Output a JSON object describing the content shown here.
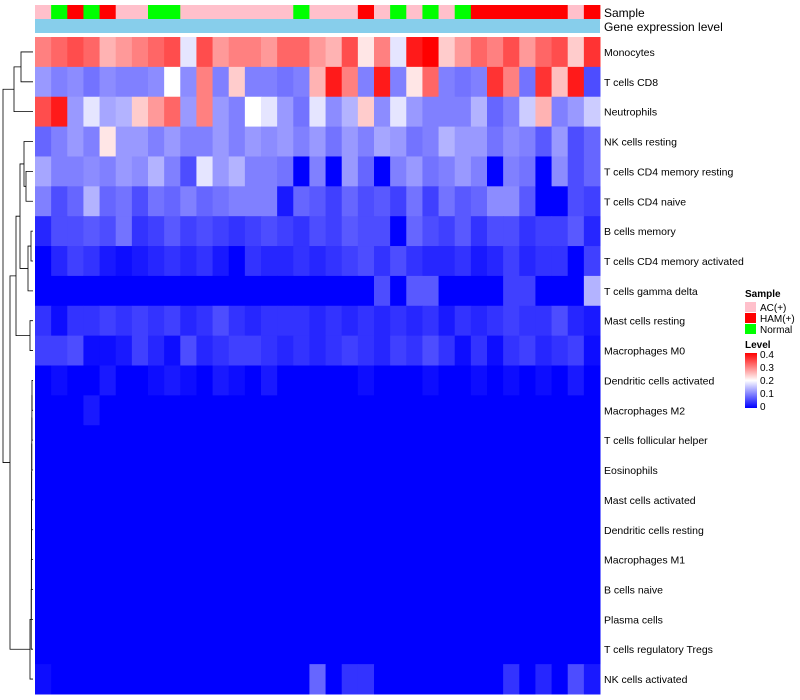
{
  "chart_data": {
    "type": "heatmap",
    "title": "",
    "annotation_labels": {
      "sample": "Sample",
      "expression": "Gene expression level"
    },
    "rows": [
      "Monocytes",
      "T cells CD8",
      "Neutrophils",
      "NK cells resting",
      "T cells CD4 memory resting",
      "T cells CD4 naive",
      "B cells memory",
      "T cells CD4 memory activated",
      "T cells gamma delta",
      "Mast cells resting",
      "Macrophages M0",
      "Dendritic cells activated",
      "Macrophages M2",
      "T cells follicular helper",
      "Eosinophils",
      "Mast cells activated",
      "Dendritic cells resting",
      "Macrophages M1",
      "B cells naive",
      "Plasma cells",
      "T cells regulatory  Tregs",
      "NK cells activated"
    ],
    "sample_groups": [
      "AC(+)",
      "Normal",
      "HAM(+)",
      "Normal",
      "HAM(+)",
      "AC(+)",
      "AC(+)",
      "Normal",
      "Normal",
      "AC(+)",
      "AC(+)",
      "AC(+)",
      "AC(+)",
      "AC(+)",
      "AC(+)",
      "AC(+)",
      "Normal",
      "AC(+)",
      "AC(+)",
      "AC(+)",
      "HAM(+)",
      "AC(+)",
      "Normal",
      "AC(+)",
      "Normal",
      "AC(+)",
      "Normal",
      "HAM(+)",
      "HAM(+)",
      "HAM(+)",
      "HAM(+)",
      "HAM(+)",
      "HAM(+)",
      "AC(+)",
      "HAM(+)"
    ],
    "values": [
      [
        0.3,
        0.32,
        0.34,
        0.32,
        0.26,
        0.28,
        0.3,
        0.32,
        0.34,
        0.18,
        0.34,
        0.28,
        0.3,
        0.3,
        0.28,
        0.32,
        0.32,
        0.28,
        0.26,
        0.34,
        0.22,
        0.3,
        0.18,
        0.38,
        0.4,
        0.24,
        0.28,
        0.32,
        0.3,
        0.34,
        0.28,
        0.32,
        0.34,
        0.24,
        0.36
      ],
      [
        0.12,
        0.1,
        0.11,
        0.09,
        0.11,
        0.1,
        0.1,
        0.11,
        0.2,
        0.11,
        0.3,
        0.1,
        0.24,
        0.1,
        0.1,
        0.09,
        0.1,
        0.26,
        0.38,
        0.3,
        0.1,
        0.38,
        0.1,
        0.22,
        0.32,
        0.1,
        0.09,
        0.1,
        0.36,
        0.3,
        0.09,
        0.36,
        0.25,
        0.38,
        0.06
      ],
      [
        0.34,
        0.38,
        0.12,
        0.18,
        0.13,
        0.14,
        0.24,
        0.28,
        0.32,
        0.12,
        0.3,
        0.12,
        0.1,
        0.2,
        0.18,
        0.12,
        0.09,
        0.18,
        0.11,
        0.14,
        0.24,
        0.11,
        0.18,
        0.12,
        0.1,
        0.1,
        0.1,
        0.14,
        0.08,
        0.1,
        0.16,
        0.26,
        0.1,
        0.12,
        0.16
      ],
      [
        0.08,
        0.1,
        0.12,
        0.1,
        0.22,
        0.12,
        0.12,
        0.1,
        0.12,
        0.1,
        0.1,
        0.12,
        0.1,
        0.12,
        0.11,
        0.12,
        0.1,
        0.12,
        0.09,
        0.12,
        0.1,
        0.13,
        0.12,
        0.09,
        0.1,
        0.14,
        0.12,
        0.12,
        0.09,
        0.11,
        0.1,
        0.07,
        0.12,
        0.06,
        0.08
      ],
      [
        0.13,
        0.1,
        0.1,
        0.11,
        0.1,
        0.12,
        0.11,
        0.14,
        0.1,
        0.06,
        0.18,
        0.12,
        0.14,
        0.1,
        0.1,
        0.09,
        0.0,
        0.1,
        0.0,
        0.12,
        0.08,
        0.0,
        0.1,
        0.12,
        0.09,
        0.1,
        0.12,
        0.1,
        0.0,
        0.1,
        0.09,
        0.0,
        0.11,
        0.06,
        0.08
      ],
      [
        0.1,
        0.06,
        0.08,
        0.14,
        0.08,
        0.09,
        0.06,
        0.09,
        0.08,
        0.1,
        0.08,
        0.09,
        0.1,
        0.1,
        0.1,
        0.02,
        0.08,
        0.07,
        0.05,
        0.08,
        0.06,
        0.07,
        0.05,
        0.09,
        0.05,
        0.09,
        0.07,
        0.08,
        0.11,
        0.11,
        0.07,
        0.0,
        0.0,
        0.06,
        0.05
      ],
      [
        0.03,
        0.06,
        0.06,
        0.07,
        0.06,
        0.09,
        0.04,
        0.05,
        0.07,
        0.05,
        0.06,
        0.05,
        0.04,
        0.05,
        0.06,
        0.05,
        0.04,
        0.06,
        0.05,
        0.07,
        0.06,
        0.06,
        0.0,
        0.08,
        0.06,
        0.05,
        0.07,
        0.04,
        0.06,
        0.06,
        0.04,
        0.05,
        0.05,
        0.07,
        0.03
      ],
      [
        0.0,
        0.03,
        0.05,
        0.04,
        0.02,
        0.01,
        0.02,
        0.03,
        0.04,
        0.03,
        0.04,
        0.02,
        0.0,
        0.04,
        0.03,
        0.03,
        0.04,
        0.03,
        0.04,
        0.05,
        0.06,
        0.04,
        0.06,
        0.04,
        0.03,
        0.03,
        0.04,
        0.02,
        0.03,
        0.05,
        0.03,
        0.04,
        0.04,
        0.0,
        0.05
      ],
      [
        0.0,
        0.0,
        0.0,
        0.0,
        0.0,
        0.0,
        0.0,
        0.0,
        0.0,
        0.0,
        0.0,
        0.0,
        0.0,
        0.0,
        0.0,
        0.0,
        0.0,
        0.0,
        0.0,
        0.0,
        0.0,
        0.06,
        0.0,
        0.07,
        0.07,
        0.0,
        0.0,
        0.0,
        0.0,
        0.05,
        0.05,
        0.0,
        0.0,
        0.0,
        0.14
      ],
      [
        0.04,
        0.01,
        0.04,
        0.04,
        0.05,
        0.04,
        0.05,
        0.04,
        0.05,
        0.03,
        0.04,
        0.06,
        0.04,
        0.03,
        0.04,
        0.04,
        0.04,
        0.03,
        0.04,
        0.03,
        0.04,
        0.03,
        0.04,
        0.03,
        0.04,
        0.02,
        0.04,
        0.03,
        0.04,
        0.05,
        0.04,
        0.04,
        0.06,
        0.03,
        0.02
      ],
      [
        0.05,
        0.05,
        0.06,
        0.01,
        0.01,
        0.02,
        0.05,
        0.03,
        0.01,
        0.06,
        0.03,
        0.04,
        0.05,
        0.05,
        0.04,
        0.03,
        0.04,
        0.03,
        0.04,
        0.05,
        0.04,
        0.03,
        0.05,
        0.04,
        0.06,
        0.04,
        0.01,
        0.04,
        0.01,
        0.04,
        0.05,
        0.03,
        0.04,
        0.05,
        0.01
      ],
      [
        0.0,
        0.01,
        0.0,
        0.0,
        0.02,
        0.0,
        0.0,
        0.01,
        0.02,
        0.01,
        0.0,
        0.02,
        0.01,
        0.0,
        0.02,
        0.0,
        0.0,
        0.0,
        0.0,
        0.0,
        0.01,
        0.0,
        0.0,
        0.0,
        0.01,
        0.0,
        0.0,
        0.01,
        0.0,
        0.01,
        0.0,
        0.01,
        0.0,
        0.02,
        0.0
      ],
      [
        0.0,
        0.0,
        0.0,
        0.02,
        0.0,
        0.0,
        0.0,
        0.0,
        0.0,
        0.0,
        0.0,
        0.0,
        0.0,
        0.0,
        0.0,
        0.0,
        0.0,
        0.0,
        0.0,
        0.0,
        0.0,
        0.0,
        0.0,
        0.0,
        0.0,
        0.0,
        0.0,
        0.0,
        0.0,
        0.0,
        0.0,
        0.0,
        0.0,
        0.0,
        0.0
      ],
      [
        0.0,
        0.0,
        0.0,
        0.0,
        0.0,
        0.0,
        0.0,
        0.0,
        0.0,
        0.0,
        0.0,
        0.0,
        0.0,
        0.0,
        0.0,
        0.0,
        0.0,
        0.0,
        0.0,
        0.0,
        0.0,
        0.0,
        0.0,
        0.0,
        0.0,
        0.0,
        0.0,
        0.0,
        0.0,
        0.0,
        0.0,
        0.0,
        0.0,
        0.0,
        0.0
      ],
      [
        0.0,
        0.0,
        0.0,
        0.0,
        0.0,
        0.0,
        0.0,
        0.0,
        0.0,
        0.0,
        0.0,
        0.0,
        0.0,
        0.0,
        0.0,
        0.0,
        0.0,
        0.0,
        0.0,
        0.0,
        0.0,
        0.0,
        0.0,
        0.0,
        0.0,
        0.0,
        0.0,
        0.0,
        0.0,
        0.0,
        0.0,
        0.0,
        0.0,
        0.0,
        0.0
      ],
      [
        0.0,
        0.0,
        0.0,
        0.0,
        0.0,
        0.0,
        0.0,
        0.0,
        0.0,
        0.0,
        0.0,
        0.0,
        0.0,
        0.0,
        0.0,
        0.0,
        0.0,
        0.0,
        0.0,
        0.0,
        0.0,
        0.0,
        0.0,
        0.0,
        0.0,
        0.0,
        0.0,
        0.0,
        0.0,
        0.0,
        0.0,
        0.0,
        0.0,
        0.0,
        0.0
      ],
      [
        0.0,
        0.0,
        0.0,
        0.0,
        0.0,
        0.0,
        0.0,
        0.0,
        0.0,
        0.0,
        0.0,
        0.0,
        0.0,
        0.0,
        0.0,
        0.0,
        0.0,
        0.0,
        0.0,
        0.0,
        0.0,
        0.0,
        0.0,
        0.0,
        0.0,
        0.0,
        0.0,
        0.0,
        0.0,
        0.0,
        0.0,
        0.0,
        0.0,
        0.0,
        0.0
      ],
      [
        0.0,
        0.0,
        0.0,
        0.0,
        0.0,
        0.0,
        0.0,
        0.0,
        0.0,
        0.0,
        0.0,
        0.0,
        0.0,
        0.0,
        0.0,
        0.0,
        0.0,
        0.0,
        0.0,
        0.0,
        0.0,
        0.0,
        0.0,
        0.0,
        0.0,
        0.0,
        0.0,
        0.0,
        0.0,
        0.0,
        0.0,
        0.0,
        0.0,
        0.0,
        0.0
      ],
      [
        0.0,
        0.0,
        0.0,
        0.0,
        0.0,
        0.0,
        0.0,
        0.0,
        0.0,
        0.0,
        0.0,
        0.0,
        0.0,
        0.0,
        0.0,
        0.0,
        0.0,
        0.0,
        0.0,
        0.0,
        0.0,
        0.0,
        0.0,
        0.0,
        0.0,
        0.0,
        0.0,
        0.0,
        0.0,
        0.0,
        0.0,
        0.0,
        0.0,
        0.0,
        0.0
      ],
      [
        0.0,
        0.0,
        0.0,
        0.0,
        0.0,
        0.0,
        0.0,
        0.0,
        0.0,
        0.0,
        0.0,
        0.0,
        0.0,
        0.0,
        0.0,
        0.0,
        0.0,
        0.0,
        0.0,
        0.0,
        0.0,
        0.0,
        0.0,
        0.0,
        0.0,
        0.0,
        0.0,
        0.0,
        0.0,
        0.0,
        0.0,
        0.0,
        0.0,
        0.0,
        0.0
      ],
      [
        0.0,
        0.0,
        0.0,
        0.0,
        0.0,
        0.0,
        0.0,
        0.0,
        0.0,
        0.0,
        0.0,
        0.0,
        0.0,
        0.0,
        0.0,
        0.0,
        0.0,
        0.0,
        0.0,
        0.0,
        0.0,
        0.0,
        0.0,
        0.0,
        0.0,
        0.0,
        0.0,
        0.0,
        0.0,
        0.0,
        0.0,
        0.0,
        0.0,
        0.0,
        0.0
      ],
      [
        0.01,
        0.0,
        0.0,
        0.0,
        0.0,
        0.0,
        0.0,
        0.0,
        0.0,
        0.0,
        0.0,
        0.0,
        0.0,
        0.0,
        0.0,
        0.0,
        0.0,
        0.08,
        0.0,
        0.04,
        0.04,
        0.0,
        0.0,
        0.0,
        0.0,
        0.0,
        0.0,
        0.0,
        0.0,
        0.04,
        0.0,
        0.03,
        0.0,
        0.06,
        0.02
      ]
    ],
    "legend": {
      "sample_title": "Sample",
      "sample_entries": [
        {
          "label": "AC(+)",
          "color": "#FFC0CB"
        },
        {
          "label": "HAM(+)",
          "color": "#FF0000"
        },
        {
          "label": "Normal",
          "color": "#00FF00"
        }
      ],
      "level_title": "Level",
      "level_ticks": [
        "0.4",
        "0.3",
        "0.2",
        "0.1",
        "0"
      ],
      "level_range": [
        0,
        0.4
      ],
      "level_colors": {
        "low": "#0000FF",
        "mid": "#FFFFFF",
        "high": "#FF0000"
      }
    },
    "expression_color": "#87CEEB"
  }
}
